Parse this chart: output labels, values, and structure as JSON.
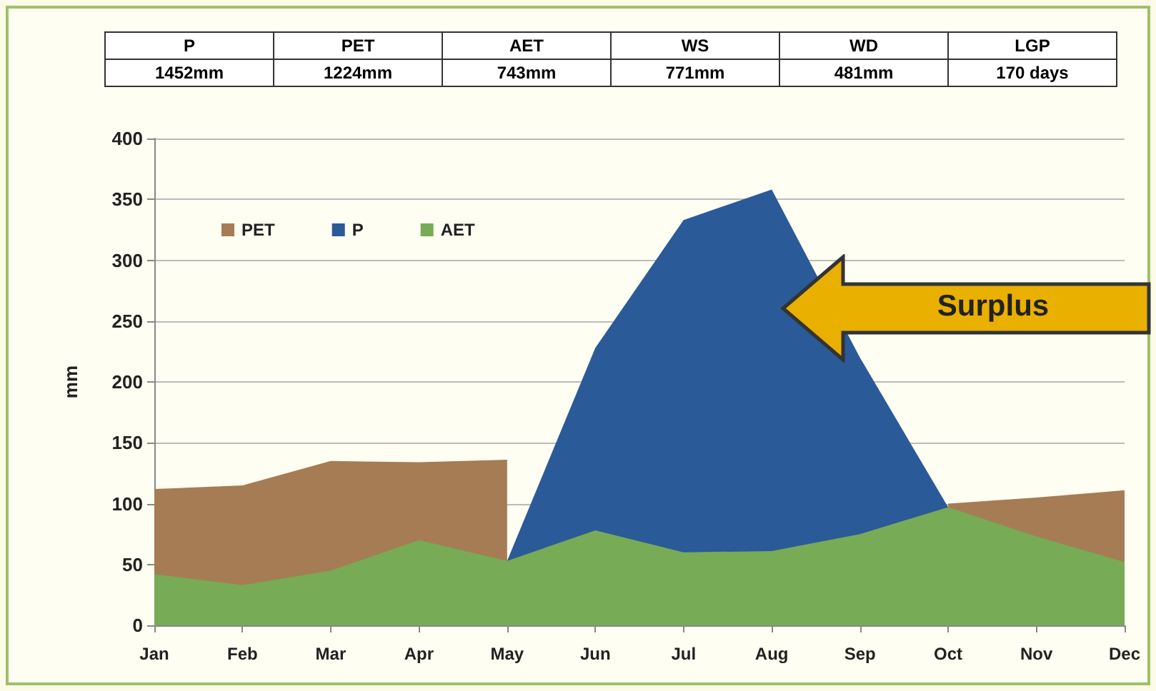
{
  "chart_data": {
    "type": "area",
    "categories": [
      "Jan",
      "Feb",
      "Mar",
      "Apr",
      "May",
      "Jun",
      "Jul",
      "Aug",
      "Sep",
      "Oct",
      "Nov",
      "Dec"
    ],
    "series": [
      {
        "name": "PET",
        "color": "#a67c55",
        "values": [
          112,
          115,
          135,
          134,
          136,
          null,
          null,
          null,
          null,
          100,
          105,
          111
        ]
      },
      {
        "name": "P",
        "color": "#2b5a98",
        "values": [
          null,
          null,
          null,
          null,
          53,
          228,
          333,
          358,
          220,
          97,
          null,
          null
        ]
      },
      {
        "name": "AET",
        "color": "#77ab56",
        "values": [
          42,
          33,
          45,
          70,
          53,
          78,
          60,
          61,
          75,
          97,
          73,
          52
        ]
      }
    ],
    "ylabel": "mm",
    "ylim": [
      0,
      400
    ],
    "yticks": [
      0,
      50,
      100,
      150,
      200,
      250,
      300,
      350,
      400
    ],
    "grid": "y",
    "legend": "top left",
    "annotations": [
      "P",
      "PET",
      "AET",
      "WS",
      "WD",
      "LGP",
      "1452mm",
      "1224mm",
      "743mm",
      "771mm",
      "481mm",
      "170 days",
      "Surplus"
    ]
  }
}
